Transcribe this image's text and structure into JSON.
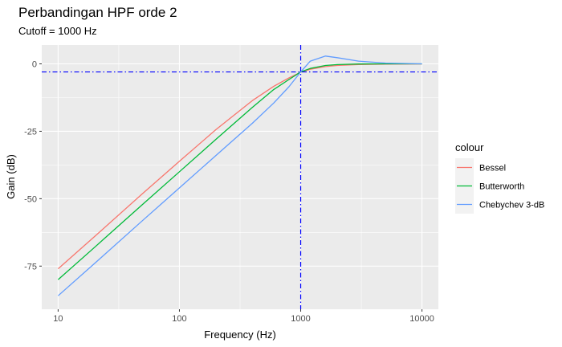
{
  "chart_data": {
    "type": "line",
    "title": "Perbandingan HPF orde 2",
    "subtitle": "Cutoff = 1000 Hz",
    "xlabel": "Frequency (Hz)",
    "ylabel": "Gain (dB)",
    "x_scale": "log10",
    "xlim": [
      10,
      10000
    ],
    "ylim": [
      -91,
      7
    ],
    "x_ticks": [
      10,
      100,
      1000,
      10000
    ],
    "x_tick_labels": [
      "10",
      "100",
      "1000",
      "10000"
    ],
    "y_ticks": [
      0,
      -25,
      -50,
      -75
    ],
    "y_tick_labels": [
      "0",
      "-25",
      "-50",
      "-75"
    ],
    "grid": true,
    "legend": {
      "title": "colour",
      "position": "right"
    },
    "reference_lines": {
      "vertical_x": 1000,
      "horizontal_y": -3,
      "color": "#0000ff",
      "style": "dash-dot"
    },
    "x": [
      10,
      20,
      50,
      100,
      200,
      400,
      600,
      800,
      1000,
      1200,
      1600,
      2000,
      3000,
      5000,
      10000
    ],
    "series": [
      {
        "name": "Bessel",
        "color": "#F8766D",
        "values": [
          -76.0,
          -64.0,
          -48.0,
          -36.1,
          -24.4,
          -13.6,
          -8.3,
          -5.2,
          -3.1,
          -2.0,
          -1.0,
          -0.6,
          -0.25,
          -0.08,
          -0.02
        ]
      },
      {
        "name": "Butterworth",
        "color": "#00BA38",
        "values": [
          -80.0,
          -68.0,
          -52.0,
          -40.0,
          -28.0,
          -16.1,
          -9.5,
          -5.8,
          -3.0,
          -1.7,
          -0.6,
          -0.26,
          -0.05,
          -0.01,
          0.0
        ]
      },
      {
        "name": "Chebychev 3-dB",
        "color": "#619CFF",
        "values": [
          -86.0,
          -74.0,
          -58.0,
          -46.0,
          -34.0,
          -22.0,
          -14.5,
          -8.5,
          -3.0,
          1.0,
          2.9,
          2.3,
          1.0,
          0.3,
          0.0
        ]
      }
    ]
  }
}
